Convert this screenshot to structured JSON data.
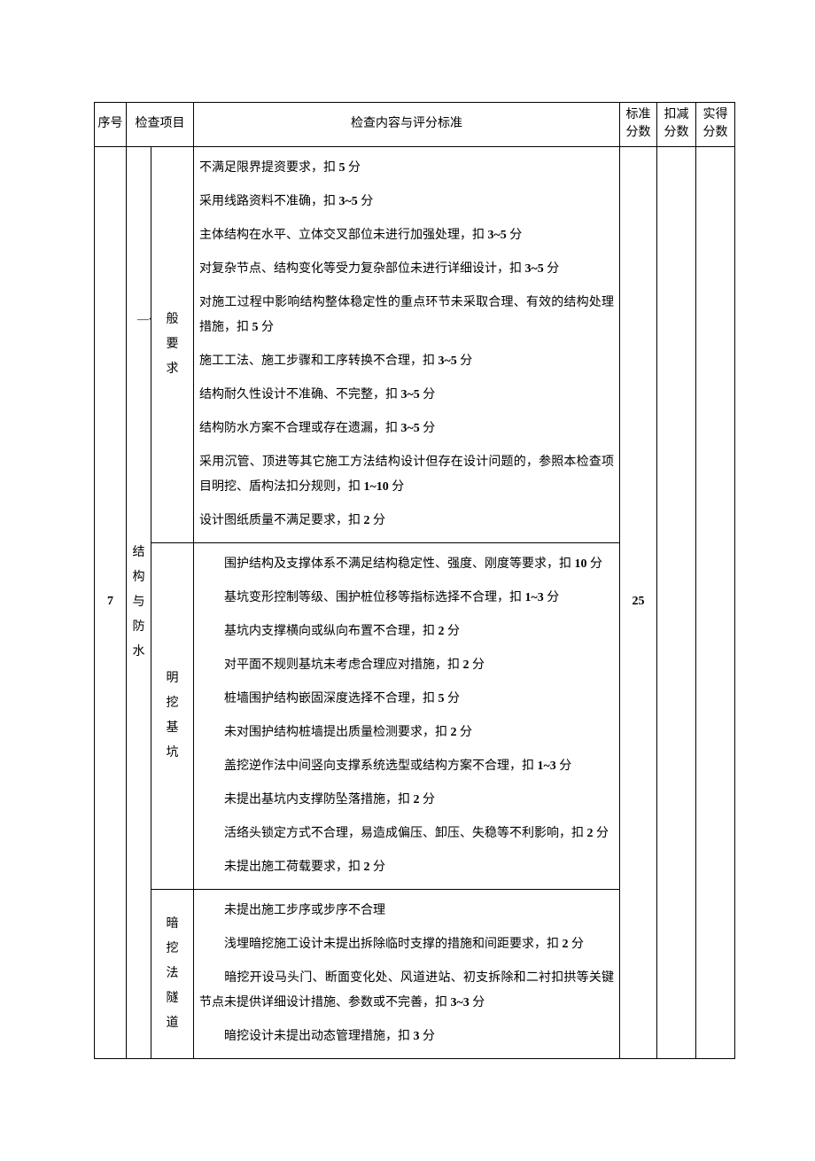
{
  "table": {
    "headers": {
      "seq": "序号",
      "project": "检查项目",
      "content": "检查内容与评分标准",
      "standard_score": "标准分数",
      "deduction": "扣减分数",
      "actual_score": "实得分数"
    },
    "row": {
      "seq_number": "7",
      "project_main": "结构与防水",
      "standard_score": "25",
      "sections": [
        {
          "category_prefix": "一",
          "category": "般要求",
          "lines": [
            "不满足限界提资要求，扣 <b>5</b> 分",
            "采用线路资料不准确，扣 <b>3~5</b> 分",
            "主体结构在水平、立体交叉部位未进行加强处理，扣 <b>3~5</b> 分",
            "对复杂节点、结构变化等受力复杂部位未进行详细设计，扣 <b>3~5</b> 分",
            "对施工过程中影响结构整体稳定性的重点环节未采取合理、有效的结构处理措施，扣 <b>5</b> 分",
            "施工工法、施工步骤和工序转换不合理，扣 <b>3~5</b> 分",
            "结构耐久性设计不准确、不完整，扣 <b>3~5</b> 分",
            "结构防水方案不合理或存在遗漏，扣 <b>3~5</b> 分",
            "采用沉管、顶进等其它施工方法结构设计但存在设计问题的，参照本检查项目明挖、盾构法扣分规则，扣 <b>1~10</b> 分",
            "设计图纸质量不满足要求，扣 <b>2</b> 分"
          ]
        },
        {
          "category": "明挖基坑",
          "lines": [
            "&emsp;&emsp;围护结构及支撑体系不满足结构稳定性、强度、刚度等要求，扣 <b>10</b> 分",
            "&emsp;&emsp;基坑变形控制等级、围护桩位移等指标选择不合理，扣 <b>1~3</b> 分",
            "&emsp;&emsp;基坑内支撑横向或纵向布置不合理，扣 <b>2</b> 分",
            "&emsp;&emsp;对平面不规则基坑未考虑合理应对措施，扣 <b>2</b> 分",
            "&emsp;&emsp;桩墙围护结构嵌固深度选择不合理，扣 <b>5</b> 分",
            "&emsp;&emsp;未对围护结构桩墙提出质量检测要求，扣 <b>2</b> 分",
            "&emsp;&emsp;盖挖逆作法中间竖向支撑系统选型或结构方案不合理，扣 <b>1~3</b> 分",
            "&emsp;&emsp;未提出基坑内支撑防坠落措施，扣 <b>2</b> 分",
            "&emsp;&emsp;活络头锁定方式不合理，易造成偏压、卸压、失稳等不利影响，扣 <b>2</b> 分",
            "&emsp;&emsp;未提出施工荷载要求，扣 <b>2</b> 分"
          ]
        },
        {
          "category": "暗挖法隧道",
          "lines": [
            "&emsp;&emsp;未提出施工步序或步序不合理",
            "&emsp;&emsp;浅埋暗挖施工设计未提出拆除临时支撑的措施和间距要求，扣 <b>2</b> 分",
            "&emsp;&emsp;暗挖开设马头门、断面变化处、风道进站、初支拆除和二衬扣拱等关键节点未提供详细设计措施、参数或不完善，扣 <b>3~3</b> 分",
            "&emsp;&emsp;暗挖设计未提出动态管理措施，扣 <b>3</b> 分"
          ]
        }
      ]
    }
  },
  "style": {
    "font_family": "SimSun",
    "font_size_pt": 10.5,
    "border_color": "#000000",
    "background_color": "#ffffff",
    "text_color": "#000000"
  }
}
